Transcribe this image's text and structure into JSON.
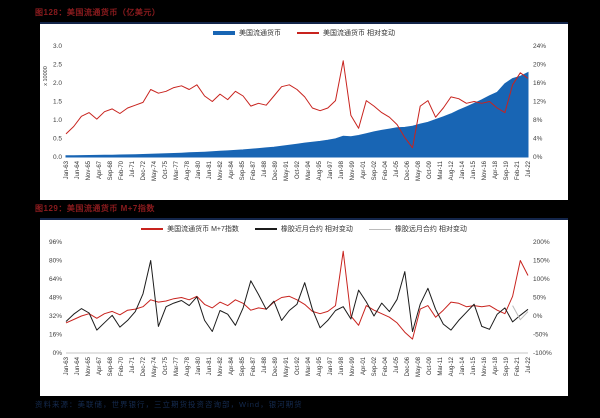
{
  "page": {
    "background": "#000000"
  },
  "figure1": {
    "title": "图128：美国流通货币（亿美元）"
  },
  "figure2": {
    "title": "图129：美国流通货币 M+7指数"
  },
  "footer": {
    "text": "资料来源：美联储，世界银行，三立期货投资咨询部，Wind，银河期货"
  },
  "colors": {
    "background": "#000000",
    "panel": "#ffffff",
    "title_red": "#8a1b1e",
    "series_blue": "#1865b4",
    "series_red": "#c8231e",
    "series_black": "#1c1c1c",
    "series_gray": "#bbbbbb",
    "axis_text": "#3d3d3d",
    "footer_blue": "#152b50"
  },
  "chart_data": [
    {
      "type": "area",
      "title": "图128：美国流通货币（亿美元）",
      "points": 61,
      "legend_position": "top-center",
      "grid": false,
      "x_labels": [
        "Jan-63",
        "Jun-64",
        "Nov-65",
        "Apr-67",
        "Sep-68",
        "Feb-70",
        "Jul-71",
        "Dec-72",
        "May-74",
        "Oct-75",
        "Mar-77",
        "Aug-78",
        "Jan-80",
        "Jun-81",
        "Nov-82",
        "Apr-84",
        "Sep-85",
        "Feb-87",
        "Jul-88",
        "Dec-89",
        "May-91",
        "Oct-92",
        "Mar-94",
        "Aug-95",
        "Jan-97",
        "Jun-98",
        "Nov-99",
        "Apr-01",
        "Sep-02",
        "Feb-04",
        "Jul-05",
        "Dec-06",
        "May-08",
        "Oct-09",
        "Mar-11",
        "Aug-12",
        "Jan-14",
        "Jun-15",
        "Nov-16",
        "Apr-18",
        "Sep-19",
        "Feb-21",
        "Jul-22"
      ],
      "left_axis": {
        "label": "x 10000",
        "min": 0,
        "max": 3,
        "ticks": [
          "3.0",
          "2.5",
          "2.0",
          "1.5",
          "1.0",
          "0.5",
          "0.0"
        ]
      },
      "right_axis": {
        "min": 0,
        "max": 24,
        "ticks": [
          "24%",
          "20%",
          "16%",
          "12%",
          "8%",
          "4%",
          "0%"
        ]
      },
      "series": [
        {
          "name": "美国流通货币",
          "type": "area",
          "axis": "left",
          "color": "#1865b4",
          "values": [
            0.033,
            0.035,
            0.037,
            0.04,
            0.043,
            0.046,
            0.049,
            0.053,
            0.057,
            0.062,
            0.068,
            0.074,
            0.08,
            0.087,
            0.095,
            0.104,
            0.113,
            0.122,
            0.131,
            0.141,
            0.153,
            0.164,
            0.178,
            0.193,
            0.21,
            0.228,
            0.246,
            0.266,
            0.292,
            0.318,
            0.346,
            0.376,
            0.398,
            0.422,
            0.452,
            0.49,
            0.56,
            0.545,
            0.582,
            0.63,
            0.678,
            0.718,
            0.755,
            0.788,
            0.8,
            0.832,
            0.888,
            0.938,
            1.01,
            1.085,
            1.165,
            1.265,
            1.355,
            1.445,
            1.545,
            1.655,
            1.75,
            1.98,
            2.12,
            2.18,
            2.28
          ]
        },
        {
          "name": "美国流通货币 相对变动",
          "type": "line",
          "axis": "right",
          "color": "#c8231e",
          "values": [
            5.0,
            6.6,
            8.8,
            9.6,
            8.2,
            9.8,
            10.4,
            9.4,
            10.6,
            11.2,
            11.8,
            14.6,
            13.8,
            14.2,
            15.0,
            15.4,
            14.6,
            15.6,
            13.2,
            12.0,
            13.6,
            12.4,
            14.2,
            13.2,
            11.0,
            11.6,
            11.2,
            13.2,
            15.2,
            15.6,
            14.6,
            13.0,
            10.6,
            10.0,
            10.6,
            12.2,
            20.8,
            9.0,
            6.2,
            12.2,
            11.0,
            9.6,
            8.6,
            7.0,
            4.2,
            2.0,
            11.0,
            12.2,
            8.6,
            10.6,
            13.0,
            12.6,
            11.6,
            12.0,
            11.6,
            12.0,
            10.6,
            9.6,
            15.6,
            18.2,
            17.0
          ]
        }
      ]
    },
    {
      "type": "line",
      "title": "图129：美国流通货币 M+7指数",
      "points": 61,
      "legend_position": "top-center",
      "grid": false,
      "x_labels": [
        "Jan-63",
        "Jun-64",
        "Nov-65",
        "Apr-67",
        "Sep-68",
        "Feb-70",
        "Jul-71",
        "Dec-72",
        "May-74",
        "Oct-75",
        "Mar-77",
        "Aug-78",
        "Jan-80",
        "Jun-81",
        "Nov-82",
        "Apr-84",
        "Sep-85",
        "Feb-87",
        "Jul-88",
        "Dec-89",
        "May-91",
        "Oct-92",
        "Mar-94",
        "Aug-95",
        "Jan-97",
        "Jun-98",
        "Nov-99",
        "Apr-01",
        "Sep-02",
        "Feb-04",
        "Jul-05",
        "Dec-06",
        "May-08",
        "Oct-09",
        "Mar-11",
        "Aug-12",
        "Jan-14",
        "Jun-15",
        "Nov-16",
        "Apr-18",
        "Sep-19",
        "Feb-21",
        "Jul-22"
      ],
      "left_axis": {
        "label": "",
        "min": 0,
        "max": 96,
        "ticks": [
          "96%",
          "80%",
          "64%",
          "48%",
          "32%",
          "16%",
          "0%"
        ]
      },
      "right_axis": {
        "min": -100,
        "max": 200,
        "ticks": [
          "200%",
          "150%",
          "100%",
          "50%",
          "0%",
          "-50%",
          "-100%"
        ]
      },
      "series": [
        {
          "name": "美国流通货币 M+7指数",
          "type": "line",
          "axis": "left",
          "color": "#c8231e",
          "values": [
            26,
            29,
            32,
            34,
            30,
            34,
            36,
            33,
            37,
            38,
            40,
            46,
            44,
            45,
            47,
            48,
            46,
            49,
            42,
            39,
            44,
            41,
            46,
            43,
            37,
            39,
            38,
            44,
            48,
            49,
            46,
            42,
            36,
            34,
            36,
            41,
            88,
            32,
            24,
            41,
            37,
            34,
            31,
            26,
            18,
            12,
            38,
            41,
            31,
            37,
            44,
            43,
            40,
            41,
            40,
            41,
            37,
            34,
            49,
            80,
            67
          ]
        },
        {
          "name": "橡胶近月合约 相对变动",
          "type": "line",
          "axis": "right",
          "color": "#1c1c1c",
          "values": [
            -15,
            5,
            20,
            8,
            -38,
            -18,
            2,
            -30,
            -12,
            12,
            60,
            150,
            -28,
            25,
            35,
            42,
            28,
            52,
            -12,
            -42,
            15,
            5,
            -25,
            22,
            95,
            58,
            18,
            40,
            -12,
            15,
            32,
            90,
            18,
            -32,
            -12,
            15,
            25,
            -8,
            70,
            38,
            0,
            35,
            12,
            45,
            120,
            -42,
            32,
            75,
            18,
            -22,
            -38,
            -12,
            10,
            32,
            -28,
            -36,
            5,
            22,
            -16,
            2,
            18
          ]
        },
        {
          "name": "橡胶远月合约 相对变动",
          "type": "line",
          "axis": "right",
          "color": "#bbbbbb",
          "offset": 58,
          "values": [
            28,
            -10,
            12
          ]
        }
      ]
    }
  ]
}
